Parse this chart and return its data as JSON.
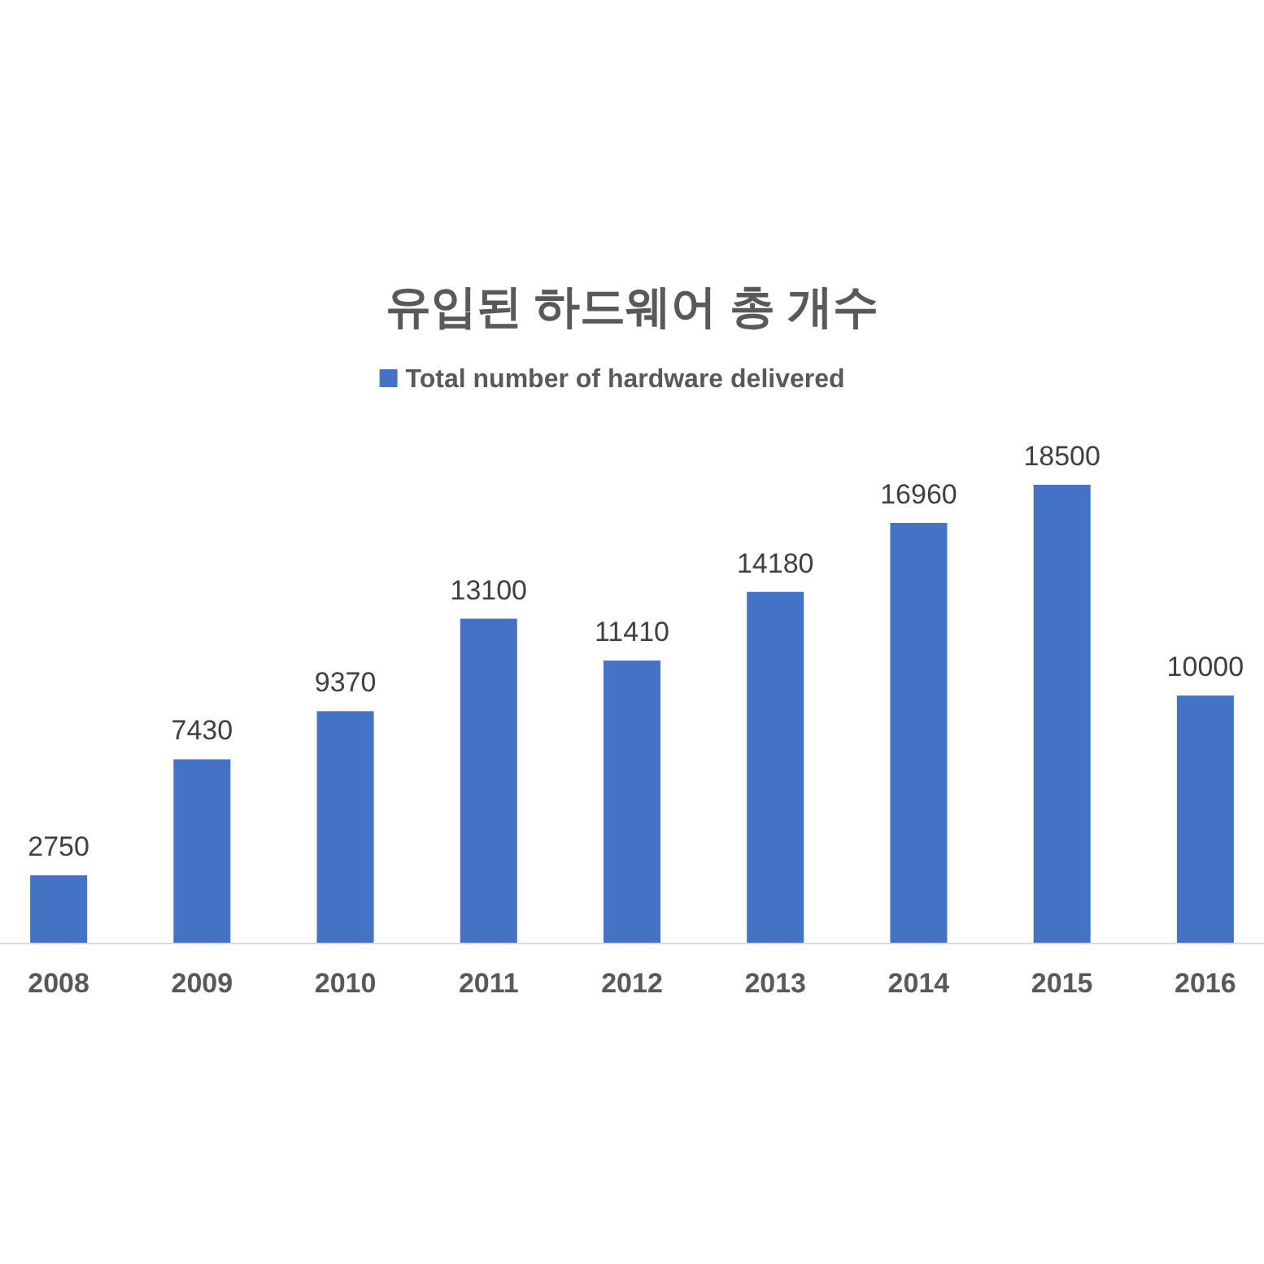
{
  "chart_data": {
    "type": "bar",
    "title": "유입된 하드웨어 총 개수",
    "categories": [
      "2008",
      "2009",
      "2010",
      "2011",
      "2012",
      "2013",
      "2014",
      "2015",
      "2016"
    ],
    "series": [
      {
        "name": "Total number of hardware delivered",
        "color": "#4472c4",
        "values": [
          2750,
          7430,
          9370,
          13100,
          11410,
          14180,
          16960,
          18500,
          10000
        ]
      }
    ],
    "data_labels": true,
    "legend": "top",
    "grid": false
  }
}
